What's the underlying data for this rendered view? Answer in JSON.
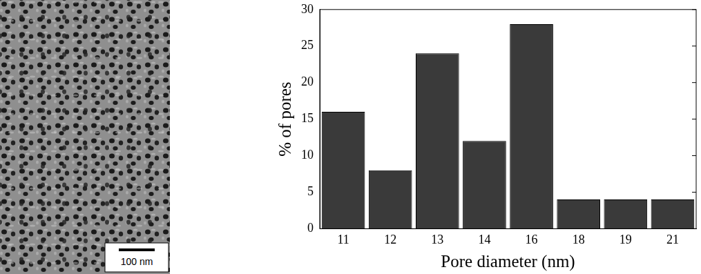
{
  "image": {
    "scale_bar_label": "100 nm"
  },
  "chart_data": {
    "type": "bar",
    "x_label": "Pore diameter (nm)",
    "y_label": "% of pores",
    "categories": [
      "11",
      "12",
      "13",
      "14",
      "16",
      "18",
      "19",
      "21"
    ],
    "values": [
      16,
      8,
      24,
      12,
      28,
      4,
      4,
      4
    ],
    "color": "#3a3a3a",
    "ylim": [
      0,
      30
    ],
    "yticks": [
      0,
      5,
      10,
      15,
      20,
      25,
      30
    ],
    "grid": false
  }
}
